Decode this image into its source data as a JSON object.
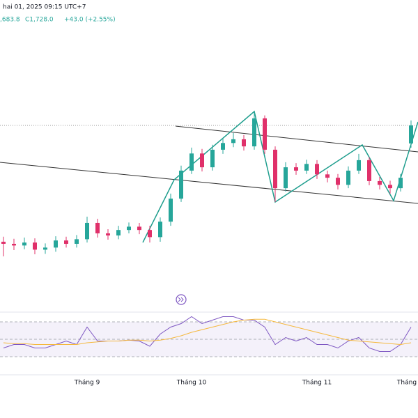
{
  "chart_data": [
    {
      "type": "candlestick",
      "title": "hai 01, 2025 09:15 UTC+7",
      "ohlc_text": [
        ",683.8",
        "C1,728.0",
        "+43.0 (+2.55%)"
      ],
      "up_color": "#26a69a",
      "down_color": "#e0306a",
      "categories": [
        null,
        null,
        null,
        null,
        null,
        null,
        null,
        null,
        "Tháng 9",
        null,
        null,
        null,
        null,
        null,
        null,
        null,
        null,
        null,
        "Tháng 10",
        null,
        null,
        null,
        null,
        null,
        null,
        null,
        null,
        null,
        null,
        null,
        "Tháng 11",
        null,
        null,
        null,
        null,
        null,
        null,
        null,
        null,
        "Tháng"
      ],
      "open": [
        1450,
        1445,
        1441,
        1448,
        1431,
        1436,
        1453,
        1445,
        1456,
        1495,
        1470,
        1465,
        1478,
        1486,
        1478,
        1461,
        1498,
        1553,
        1620,
        1661,
        1628,
        1670,
        1686,
        1695,
        1678,
        1745,
        1670,
        1578,
        1628,
        1620,
        1636,
        1611,
        1603,
        1586,
        1620,
        1645,
        1595,
        1586,
        1578,
        1685
      ],
      "high": [
        1462,
        1457,
        1460,
        1458,
        1446,
        1463,
        1462,
        1466,
        1510,
        1505,
        1480,
        1488,
        1496,
        1495,
        1488,
        1508,
        1565,
        1632,
        1675,
        1672,
        1682,
        1698,
        1710,
        1705,
        1760,
        1752,
        1678,
        1640,
        1638,
        1646,
        1645,
        1620,
        1612,
        1630,
        1660,
        1652,
        1605,
        1596,
        1612,
        1740
      ],
      "low": [
        1415,
        1430,
        1432,
        1420,
        1421,
        1426,
        1436,
        1436,
        1448,
        1460,
        1455,
        1456,
        1470,
        1468,
        1448,
        1450,
        1488,
        1545,
        1612,
        1618,
        1620,
        1660,
        1676,
        1668,
        1670,
        1660,
        1545,
        1570,
        1610,
        1612,
        1600,
        1592,
        1575,
        1578,
        1612,
        1585,
        1575,
        1565,
        1570,
        1675
      ],
      "close": [
        1445,
        1441,
        1448,
        1431,
        1436,
        1453,
        1445,
        1456,
        1495,
        1470,
        1465,
        1478,
        1486,
        1478,
        1461,
        1498,
        1553,
        1620,
        1661,
        1628,
        1670,
        1686,
        1695,
        1678,
        1745,
        1670,
        1578,
        1628,
        1620,
        1636,
        1611,
        1603,
        1586,
        1620,
        1645,
        1595,
        1586,
        1578,
        1603,
        1728
      ],
      "ylim": [
        1345,
        1978
      ]
    },
    {
      "type": "line",
      "ylim": [
        0,
        100
      ],
      "levels": [
        70,
        50,
        30
      ],
      "band_color": "#ede7f6",
      "series": [
        {
          "color": "#7e57c2",
          "values": [
            40,
            44,
            44,
            40,
            40,
            44,
            48,
            44,
            64,
            48,
            48,
            48,
            49,
            48,
            42,
            56,
            64,
            68,
            76,
            68,
            72,
            76,
            76,
            72,
            72,
            64,
            44,
            52,
            48,
            52,
            44,
            44,
            40,
            48,
            52,
            40,
            36,
            36,
            44,
            64
          ]
        },
        {
          "color": "#f5b83d",
          "values": [
            46,
            45,
            45,
            44,
            44,
            44,
            44,
            44,
            46,
            47,
            48,
            48,
            49,
            49,
            48,
            49,
            51,
            54,
            58,
            61,
            64,
            67,
            70,
            72,
            73,
            73,
            70,
            67,
            64,
            61,
            58,
            55,
            52,
            49,
            48,
            47,
            46,
            45,
            44,
            46
          ]
        }
      ]
    }
  ]
}
